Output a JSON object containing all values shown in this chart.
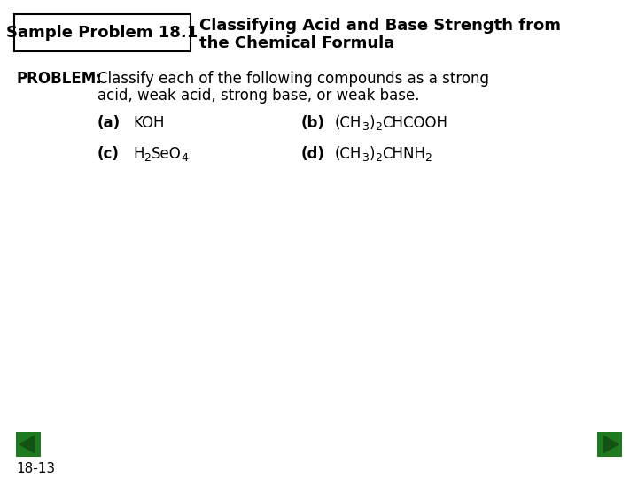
{
  "bg_color": "#ffffff",
  "title_box_text": "Sample Problem 18.1",
  "title_main_line1": "Classifying Acid and Base Strength from",
  "title_main_line2": "the Chemical Formula",
  "problem_label": "PROBLEM:",
  "problem_text_line1": "Classify each of the following compounds as a strong",
  "problem_text_line2": "acid, weak acid, strong base, or weak base.",
  "footer_text": "18-13",
  "arrow_color": "#1e7a1e",
  "font_size_title": 13,
  "font_size_body": 12,
  "font_size_footer": 11
}
